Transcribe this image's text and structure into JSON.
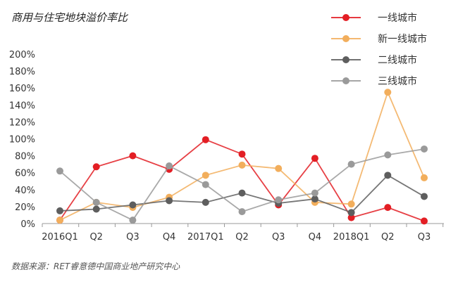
{
  "chart_data": {
    "type": "line",
    "title": "商用与住宅地块溢价率比",
    "source": "数据来源：RET睿意德中国商业地产研究中心",
    "xlabel": "",
    "ylabel": "",
    "categories": [
      "2016Q1",
      "Q2",
      "Q3",
      "Q4",
      "2017Q1",
      "Q2",
      "Q3",
      "Q4",
      "2018Q1",
      "Q2",
      "Q3"
    ],
    "yticks": [
      "0%",
      "20%",
      "40%",
      "60%",
      "80%",
      "100%",
      "120%",
      "140%",
      "160%",
      "180%",
      "200%"
    ],
    "ylim": [
      0,
      200
    ],
    "grid": false,
    "legend_position": "top-right",
    "series": [
      {
        "name": "一线城市",
        "color": "#e31e24",
        "values": [
          4,
          67,
          80,
          64,
          99,
          82,
          22,
          77,
          7,
          19,
          3
        ]
      },
      {
        "name": "新一线城市",
        "color": "#f2ae5c",
        "values": [
          4,
          25,
          19,
          31,
          57,
          69,
          65,
          25,
          23,
          155,
          54
        ]
      },
      {
        "name": "二线城市",
        "color": "#5e5e5e",
        "values": [
          15,
          17,
          22,
          27,
          25,
          36,
          24,
          29,
          13,
          57,
          32
        ]
      },
      {
        "name": "三线城市",
        "color": "#9a9a9a",
        "values": [
          62,
          25,
          4,
          68,
          46,
          14,
          28,
          36,
          70,
          81,
          88
        ]
      }
    ]
  }
}
